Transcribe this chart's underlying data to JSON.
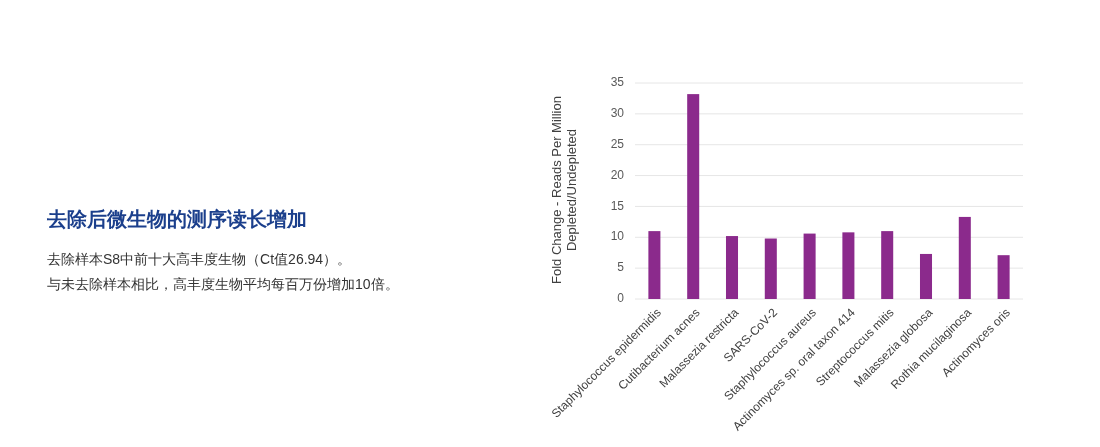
{
  "chart_data": {
    "type": "bar",
    "title": "去除后微生物的测序读长增加",
    "annotations": [
      "去除样本S8中前十大高丰度生物（Ct值26.94）。",
      "与未去除样本相比，高丰度生物平均每百万份增加10倍。"
    ],
    "ylabel": "Fold Change - Reads Per Million\nDepleted/Undepleted",
    "categories": [
      "Staphylococcus epidermidis",
      "Cutibacterium acnes",
      "Malassezia restricta",
      "SARS-CoV-2",
      "Staphylococcus aureus",
      "Actinomyces sp. oral taxon 414",
      "Streptococcus mitis",
      "Malassezia globosa",
      "Rothia mucilaginosa",
      "Actinomyces oris"
    ],
    "values": [
      11.0,
      33.2,
      10.2,
      9.8,
      10.6,
      10.8,
      11.0,
      7.3,
      13.3,
      7.1
    ],
    "color": "#8b2a8c",
    "ylim": [
      0,
      35
    ],
    "yticks": [
      0,
      5,
      10,
      15,
      20,
      25,
      30,
      35
    ],
    "grid": "y"
  }
}
